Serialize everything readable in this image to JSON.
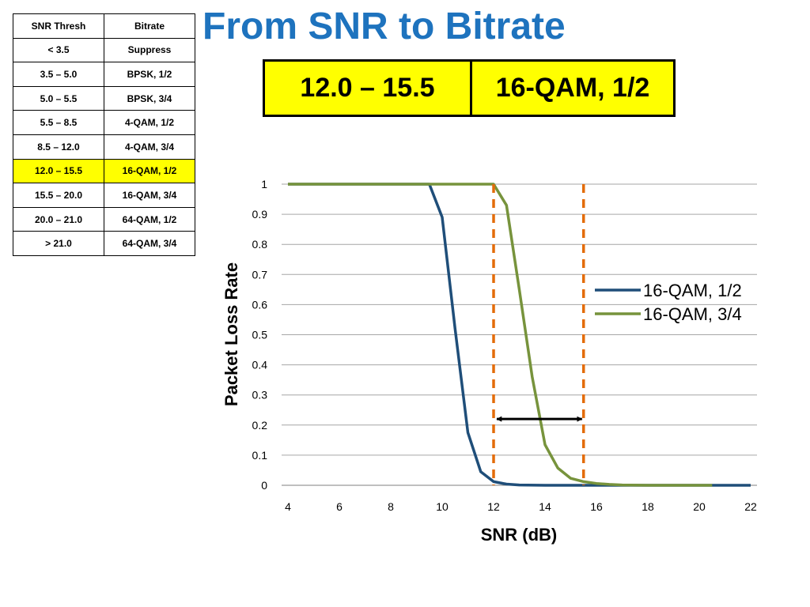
{
  "title": "From SNR to Bitrate",
  "table": {
    "headers": [
      "SNR Thresh",
      "Bitrate"
    ],
    "rows": [
      [
        "< 3.5",
        "Suppress"
      ],
      [
        "3.5 – 5.0",
        "BPSK, 1/2"
      ],
      [
        "5.0 – 5.5",
        "BPSK, 3/4"
      ],
      [
        "5.5 – 8.5",
        "4-QAM, 1/2"
      ],
      [
        "8.5 – 12.0",
        "4-QAM, 3/4"
      ],
      [
        "12.0 – 15.5",
        "16-QAM, 1/2"
      ],
      [
        "15.5 – 20.0",
        "16-QAM, 3/4"
      ],
      [
        "20.0 – 21.0",
        "64-QAM, 1/2"
      ],
      [
        "> 21.0",
        "64-QAM, 3/4"
      ]
    ],
    "highlight_row": 5,
    "highlight_color": "#ffff00"
  },
  "selected": {
    "snr_range": "12.0 – 15.5",
    "bitrate": "16-QAM, 1/2"
  },
  "chart_data": {
    "type": "line",
    "xlabel": "SNR (dB)",
    "ylabel": "Packet Loss Rate",
    "xlim": [
      4,
      22
    ],
    "ylim": [
      0,
      1
    ],
    "xticks": [
      4,
      6,
      8,
      10,
      12,
      14,
      16,
      18,
      20,
      22
    ],
    "yticks": [
      0,
      0.1,
      0.2,
      0.3,
      0.4,
      0.5,
      0.6,
      0.7,
      0.8,
      0.9,
      1
    ],
    "ytick_labels": [
      "0",
      "0.1",
      "0.2",
      "0.3",
      "0.4",
      "0.5",
      "0.6",
      "0.7",
      "0.8",
      "0.9",
      "1"
    ],
    "grid": "horizontal",
    "legend_position": "right",
    "series": [
      {
        "name": "16-QAM, 1/2",
        "color": "#1f4e79",
        "x": [
          4,
          9.5,
          10,
          10.5,
          11,
          11.5,
          12,
          12.5,
          13,
          14,
          16,
          18,
          20,
          22
        ],
        "y": [
          1,
          1,
          0.89,
          0.52,
          0.175,
          0.045,
          0.012,
          0.004,
          0.001,
          0,
          0,
          0,
          0,
          0
        ]
      },
      {
        "name": "16-QAM, 3/4",
        "color": "#77933c",
        "x": [
          4,
          12,
          12.5,
          13,
          13.5,
          14,
          14.5,
          15,
          15.5,
          16,
          16.5,
          17,
          18,
          20,
          20.5
        ],
        "y": [
          1,
          1,
          0.93,
          0.65,
          0.36,
          0.135,
          0.057,
          0.023,
          0.012,
          0.006,
          0.003,
          0.001,
          0,
          0,
          0
        ]
      }
    ],
    "threshold_lines": {
      "x": [
        12,
        15.5
      ],
      "color": "#e36c09",
      "style": "dashed"
    },
    "arrow": {
      "x_from": 12,
      "x_to": 15.5,
      "y": 0.22,
      "color": "#000000"
    }
  }
}
